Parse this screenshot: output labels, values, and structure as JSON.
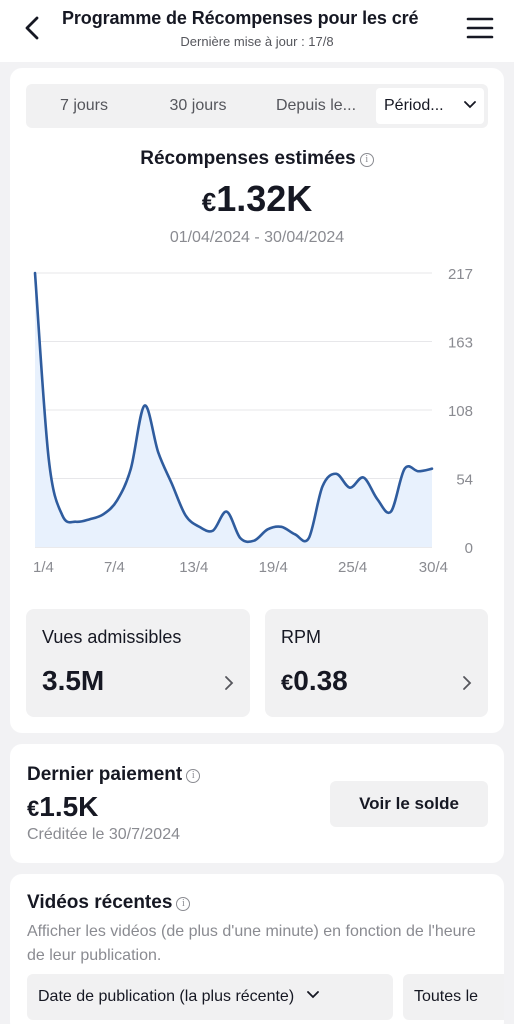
{
  "header": {
    "title": "Programme de Récompenses pour les cré",
    "subtitle": "Dernière mise à jour : 17/8"
  },
  "tabs": {
    "items": [
      "7 jours",
      "30 jours",
      "Depuis le..."
    ],
    "active": "Périod..."
  },
  "rewards": {
    "title": "Récompenses estimées",
    "currency": "€",
    "amount": "1.32K",
    "range": "01/04/2024 - 30/04/2024"
  },
  "chart_data": {
    "type": "line",
    "title": "",
    "x_tick_labels": [
      "1/4",
      "7/4",
      "13/4",
      "19/4",
      "25/4",
      "30/4"
    ],
    "y_tick_labels": [
      "217",
      "163",
      "108",
      "54",
      "0"
    ],
    "ylim": [
      0,
      217
    ],
    "grid": true,
    "x": [
      1,
      2,
      3,
      4,
      5,
      6,
      7,
      8,
      9,
      10,
      11,
      12,
      13,
      14,
      15,
      16,
      17,
      18,
      19,
      20,
      21,
      22,
      23,
      24,
      25,
      26,
      27,
      28,
      29,
      30
    ],
    "values": [
      217,
      70,
      25,
      20,
      22,
      26,
      37,
      62,
      112,
      75,
      50,
      25,
      16,
      13,
      28,
      7,
      5,
      14,
      16,
      10,
      7,
      48,
      58,
      47,
      55,
      38,
      28,
      62,
      60,
      62
    ],
    "line_color": "#2f5c9e",
    "fill_color": "#e8f1fd"
  },
  "stats": [
    {
      "label": "Vues admissibles",
      "value": "3.5M",
      "currency": ""
    },
    {
      "label": "RPM",
      "value": "0.38",
      "currency": "€"
    }
  ],
  "payment": {
    "title": "Dernier paiement",
    "currency": "€",
    "amount": "1.5K",
    "date": "Créditée le 30/7/2024",
    "button": "Voir le solde"
  },
  "videos": {
    "title": "Vidéos récentes",
    "description": "Afficher les vidéos (de plus d'une minute) en fonction de l'heure de leur publication.",
    "sort": "Date de publication (la plus récente)",
    "filter": "Toutes le"
  }
}
